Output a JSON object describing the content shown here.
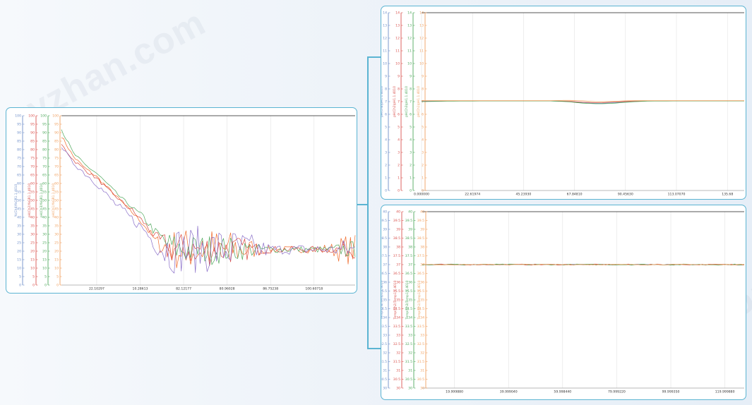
{
  "watermark": "zyzhan.com",
  "colors": {
    "blue": "#6f8fc9",
    "red": "#d9534f",
    "green": "#4fa85c",
    "orange": "#f0a060",
    "purple": "#8a6fc9",
    "orangeFill": "#f06a2a",
    "redFill": "#d9473f",
    "border": "#5bb4d2"
  },
  "chart_data": [
    {
      "type": "line",
      "axes": [
        {
          "ticks": [
            "100",
            "95",
            "90",
            "85",
            "80",
            "75",
            "70",
            "65",
            "60",
            "55",
            "50",
            "45",
            "40",
            "35",
            "30",
            "25",
            "20",
            "15",
            "10",
            "5",
            "0"
          ],
          "label": "%(Ch4)%GR1.1.4010",
          "color": "#6f8fc9"
        },
        {
          "ticks": [
            "100",
            "95",
            "90",
            "85",
            "80",
            "75",
            "70",
            "65",
            "60",
            "55",
            "50",
            "45",
            "40",
            "35",
            "30",
            "25",
            "20",
            "15",
            "10",
            "5",
            "0"
          ],
          "label": "pH(Ch2)%GR1.1.4010",
          "color": "#d9534f"
        },
        {
          "ticks": [
            "100",
            "95",
            "90",
            "85",
            "80",
            "75",
            "70",
            "65",
            "60",
            "55",
            "50",
            "45",
            "40",
            "35",
            "30",
            "25",
            "20",
            "15",
            "10",
            "5",
            "0"
          ],
          "label": "pH(Ch3)%GR1.1.4010",
          "color": "#4fa85c"
        },
        {
          "ticks": [
            "100",
            "95",
            "90",
            "85",
            "80",
            "75",
            "70",
            "65",
            "60",
            "55",
            "50",
            "45",
            "40",
            "35",
            "30",
            "25",
            "20",
            "15",
            "10",
            "5",
            "0"
          ],
          "label": "pH(Ch1)%GR1.1.4010",
          "color": "#f0a060"
        }
      ],
      "x_ticks": [
        "22.10297",
        "10.28613",
        "82.12177",
        "80.96028",
        "86.75238",
        "100.60718"
      ],
      "x": [
        0,
        4,
        8,
        12,
        16,
        20,
        24,
        28,
        32,
        36,
        40,
        44,
        48,
        52,
        56,
        60,
        64,
        68,
        72,
        76,
        80,
        84,
        88,
        92,
        96,
        100
      ],
      "series": [
        {
          "color": "#8a6fc9",
          "values": [
            82,
            72,
            66,
            60,
            52,
            45,
            39,
            33,
            24,
            21,
            21,
            21,
            21,
            21,
            21,
            21,
            21,
            21,
            21,
            21,
            21,
            21,
            21,
            21,
            21,
            21
          ],
          "noise": [
            1,
            1,
            2,
            2,
            2,
            3,
            3,
            3,
            5,
            14,
            14,
            14,
            14,
            14,
            13,
            12,
            10,
            6,
            3,
            3,
            3,
            3,
            3,
            3,
            6,
            6
          ]
        },
        {
          "color": "#d9534f",
          "values": [
            83,
            74,
            68,
            63,
            56,
            50,
            44,
            37,
            28,
            22,
            21,
            21,
            21,
            21,
            21,
            21,
            21,
            21,
            21,
            21,
            21,
            21,
            21,
            21,
            21,
            21
          ],
          "noise": [
            1,
            1,
            1,
            1,
            1,
            1,
            2,
            2,
            3,
            9,
            10,
            10,
            10,
            10,
            9,
            8,
            6,
            3,
            2,
            2,
            2,
            2,
            2,
            2,
            5,
            5
          ]
        },
        {
          "color": "#4fa85c",
          "values": [
            92,
            78,
            71,
            66,
            59,
            52,
            46,
            40,
            31,
            24,
            21,
            21,
            21,
            21,
            21,
            21,
            21,
            21,
            21,
            21,
            21,
            21,
            21,
            21,
            21,
            21
          ],
          "noise": [
            1,
            1,
            1,
            1,
            1,
            1,
            1,
            2,
            3,
            8,
            9,
            9,
            9,
            9,
            8,
            7,
            5,
            3,
            2,
            2,
            2,
            2,
            2,
            2,
            5,
            5
          ]
        },
        {
          "color": "#f0a060",
          "values": [
            88,
            76,
            69,
            64,
            57,
            50,
            43,
            36,
            26,
            22,
            21,
            21,
            21,
            21,
            21,
            21,
            21,
            21,
            21,
            21,
            21,
            21,
            21,
            21,
            21,
            21
          ],
          "noise": [
            1,
            1,
            1,
            1,
            1,
            1,
            1,
            2,
            3,
            10,
            13,
            13,
            13,
            13,
            12,
            10,
            7,
            3,
            2,
            2,
            2,
            2,
            3,
            4,
            9,
            9
          ]
        }
      ],
      "ylim": [
        0,
        100
      ]
    },
    {
      "type": "line",
      "axes": [
        {
          "ticks": [
            "14",
            "13",
            "12",
            "11",
            "10",
            "9",
            "8",
            "7",
            "6",
            "5",
            "4",
            "3",
            "2",
            "1",
            "0"
          ],
          "label": "pH(Ch4)pH1.1.4010",
          "color": "#6f8fc9"
        },
        {
          "ticks": [
            "14",
            "13",
            "12",
            "11",
            "10",
            "9",
            "8",
            "7",
            "6",
            "5",
            "4",
            "3",
            "2",
            "1",
            "0"
          ],
          "label": "pH(Ch2)pH1.1.4010",
          "color": "#d9534f"
        },
        {
          "ticks": [
            "14",
            "13",
            "12",
            "11",
            "10",
            "9",
            "8",
            "7",
            "6",
            "5",
            "4",
            "3",
            "2",
            "1",
            "0"
          ],
          "label": "pH(Ch3)pH1.1.4010",
          "color": "#4fa85c"
        },
        {
          "ticks": [
            "14",
            "13",
            "12",
            "11",
            "10",
            "9",
            "8",
            "7",
            "6",
            "5",
            "4",
            "3",
            "2",
            "1",
            "0"
          ],
          "label": "pH(Ch1)pH1.1.4010",
          "color": "#f0a060"
        }
      ],
      "x_ticks": [
        "0.000000",
        "22.61974",
        "45.23930",
        "67.84810",
        "90.45630",
        "113.07070",
        "135.68"
      ],
      "x": [
        0,
        10,
        20,
        30,
        40,
        45,
        50,
        55,
        60,
        65,
        70,
        80,
        90,
        100
      ],
      "series": [
        {
          "color": "#6f8fc9",
          "values": [
            7.05,
            7.05,
            7.05,
            7.05,
            7.05,
            7.02,
            6.92,
            6.85,
            6.92,
            7.0,
            7.05,
            7.05,
            7.05,
            7.05
          ]
        },
        {
          "color": "#d9534f",
          "values": [
            7.06,
            7.06,
            7.06,
            7.06,
            7.06,
            7.03,
            6.95,
            6.9,
            6.97,
            7.03,
            7.06,
            7.06,
            7.06,
            7.06
          ]
        },
        {
          "color": "#4fa85c",
          "values": [
            7.0,
            7.04,
            7.05,
            7.05,
            7.05,
            7.0,
            6.88,
            6.82,
            6.88,
            6.98,
            7.04,
            7.05,
            7.05,
            7.05
          ]
        },
        {
          "color": "#f0a060",
          "values": [
            7.08,
            7.07,
            7.07,
            7.07,
            7.07,
            7.1,
            7.06,
            6.98,
            7.02,
            7.08,
            7.07,
            7.07,
            7.07,
            7.07
          ]
        }
      ],
      "ylim": [
        0,
        14
      ]
    },
    {
      "type": "line",
      "axes": [
        {
          "ticks": [
            "40",
            "39.5",
            "39",
            "38.5",
            "38",
            "37.5",
            "37",
            "36.5",
            "36",
            "35.5",
            "35",
            "34.5",
            "34",
            "33.5",
            "33",
            "32.5",
            "32",
            "31.5",
            "31",
            "30.5",
            "30"
          ],
          "label": "Temp(Ch4)Temp1.1.4010",
          "color": "#6f8fc9"
        },
        {
          "ticks": [
            "40",
            "39.5",
            "39",
            "38.5",
            "38",
            "37.5",
            "37",
            "36.5",
            "36",
            "35.5",
            "35",
            "34.5",
            "34",
            "33.5",
            "33",
            "32.5",
            "32",
            "31.5",
            "31",
            "30.5",
            "30"
          ],
          "label": "Temp(Ch2)Temp1.1.4010",
          "color": "#d9534f"
        },
        {
          "ticks": [
            "40",
            "39.5",
            "39",
            "38.5",
            "38",
            "37.5",
            "37",
            "36.5",
            "36",
            "35.5",
            "35",
            "34.5",
            "34",
            "33.5",
            "33",
            "32.5",
            "32",
            "31.5",
            "31",
            "30.5",
            "30"
          ],
          "label": "Temp(Ch3)Temp1.1.4010",
          "color": "#4fa85c"
        },
        {
          "ticks": [
            "40",
            "39.5",
            "39",
            "38.5",
            "38",
            "37.5",
            "37",
            "36.5",
            "36",
            "35.5",
            "35",
            "34.5",
            "34",
            "33.5",
            "33",
            "32.5",
            "32",
            "31.5",
            "31",
            "30.5",
            "30"
          ],
          "label": "Temp(Ch1)Temp1.1.4010",
          "color": "#f0a060"
        }
      ],
      "x_ticks": [
        "19.999880",
        "39.999040",
        "59.998440",
        "79.999220",
        "99.999350",
        "119.999880"
      ],
      "x": [
        0,
        100
      ],
      "series": [
        {
          "color": "#6f8fc9",
          "values": [
            37.0,
            37.0
          ],
          "noise": [
            0.02,
            0.02
          ]
        },
        {
          "color": "#d9534f",
          "values": [
            37.0,
            37.0
          ],
          "noise": [
            0.03,
            0.03
          ]
        },
        {
          "color": "#4fa85c",
          "values": [
            37.0,
            37.0
          ],
          "noise": [
            0.03,
            0.03
          ]
        },
        {
          "color": "#f0a060",
          "values": [
            37.0,
            37.0
          ],
          "noise": [
            0.02,
            0.02
          ]
        }
      ],
      "ylim": [
        30,
        40
      ]
    }
  ]
}
